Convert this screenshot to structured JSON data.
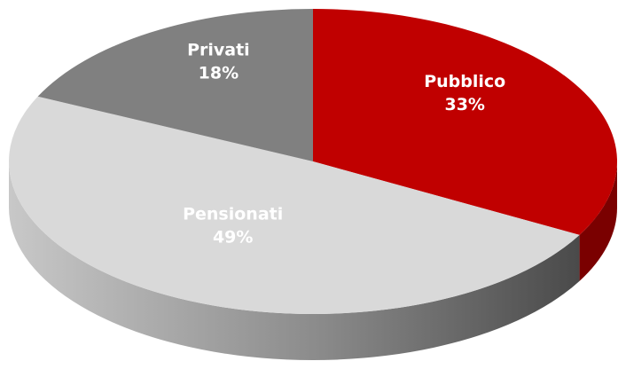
{
  "chart_data": {
    "type": "pie",
    "categories": [
      "Pubblico",
      "Pensionati",
      "Privati"
    ],
    "values": [
      33,
      49,
      18
    ],
    "value_labels": [
      "33%",
      "49%",
      "18%"
    ],
    "colors": [
      "#c00000",
      "#d9d9d9",
      "#808080"
    ],
    "side_colors": [
      "#7a0000",
      "url(#sideGrad)",
      "#5a5a5a"
    ]
  }
}
